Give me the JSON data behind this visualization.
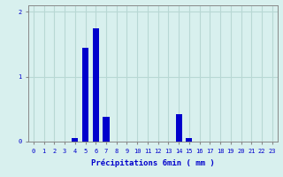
{
  "hours": [
    0,
    1,
    2,
    3,
    4,
    5,
    6,
    7,
    8,
    9,
    10,
    11,
    12,
    13,
    14,
    15,
    16,
    17,
    18,
    19,
    20,
    21,
    22,
    23
  ],
  "values": [
    0,
    0,
    0,
    0,
    0.05,
    1.45,
    1.75,
    0.38,
    0,
    0,
    0,
    0,
    0,
    0,
    0.42,
    0.05,
    0,
    0,
    0,
    0,
    0,
    0,
    0,
    0
  ],
  "bar_color": "#0000cc",
  "background_color": "#d8f0ee",
  "grid_color": "#b8d8d4",
  "text_color": "#0000cc",
  "xlabel": "Précipitations 6min ( mm )",
  "ylim": [
    0,
    2.1
  ],
  "yticks": [
    0,
    1,
    2
  ],
  "bar_width": 0.6
}
